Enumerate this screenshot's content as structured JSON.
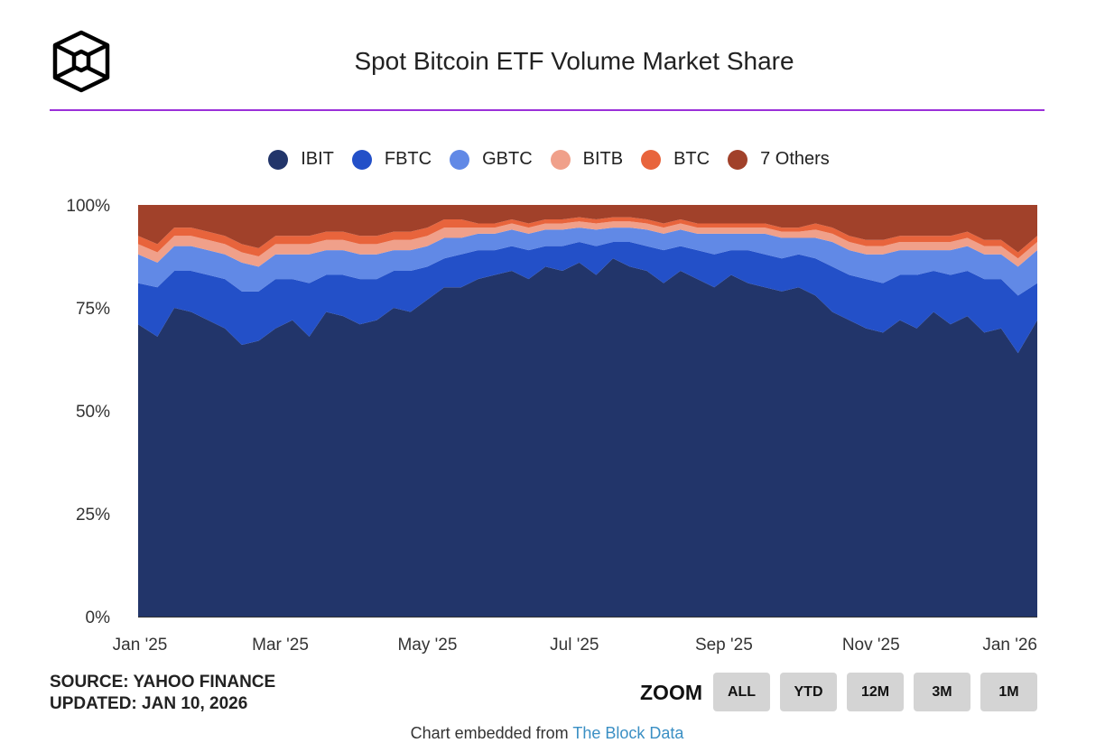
{
  "header": {
    "title": "Spot Bitcoin ETF Volume Market Share",
    "logo": "The Block"
  },
  "footer": {
    "source": "SOURCE: YAHOO FINANCE",
    "updated": "UPDATED: JAN 10, 2026",
    "zoom_label": "ZOOM",
    "zoom_buttons": [
      "ALL",
      "YTD",
      "12M",
      "3M",
      "1M"
    ],
    "embedded_text": "Chart embedded from ",
    "embedded_link": "The Block Data"
  },
  "chart_data": {
    "type": "area",
    "stacked": true,
    "title": "Spot Bitcoin ETF Volume Market Share",
    "xlabel": "",
    "ylabel": "",
    "ylim": [
      0,
      100
    ],
    "y_ticks": [
      "0%",
      "25%",
      "50%",
      "75%",
      "100%"
    ],
    "x_ticks": [
      {
        "date": "2025-01-01",
        "label": "Jan '25"
      },
      {
        "date": "2025-03-01",
        "label": "Mar '25"
      },
      {
        "date": "2025-05-01",
        "label": "May '25"
      },
      {
        "date": "2025-07-01",
        "label": "Jul '25"
      },
      {
        "date": "2025-09-01",
        "label": "Sep '25"
      },
      {
        "date": "2025-11-01",
        "label": "Nov '25"
      },
      {
        "date": "2026-01-01",
        "label": "Jan '26"
      }
    ],
    "legend_position": "top",
    "grid": false,
    "x": [
      "2025-01-02",
      "2025-01-09",
      "2025-01-16",
      "2025-01-23",
      "2025-01-30",
      "2025-02-06",
      "2025-02-13",
      "2025-02-20",
      "2025-02-27",
      "2025-03-06",
      "2025-03-13",
      "2025-03-20",
      "2025-03-27",
      "2025-04-03",
      "2025-04-10",
      "2025-04-17",
      "2025-04-24",
      "2025-05-01",
      "2025-05-08",
      "2025-05-15",
      "2025-05-22",
      "2025-05-29",
      "2025-06-05",
      "2025-06-12",
      "2025-06-19",
      "2025-06-26",
      "2025-07-03",
      "2025-07-10",
      "2025-07-17",
      "2025-07-24",
      "2025-07-31",
      "2025-08-07",
      "2025-08-14",
      "2025-08-21",
      "2025-08-28",
      "2025-09-04",
      "2025-09-11",
      "2025-09-18",
      "2025-09-25",
      "2025-10-02",
      "2025-10-09",
      "2025-10-16",
      "2025-10-23",
      "2025-10-30",
      "2025-11-06",
      "2025-11-13",
      "2025-11-20",
      "2025-11-27",
      "2025-12-04",
      "2025-12-11",
      "2025-12-18",
      "2025-12-25",
      "2026-01-01",
      "2026-01-08"
    ],
    "series": [
      {
        "name": "IBIT",
        "color": "#22356a",
        "values": [
          71,
          68,
          75,
          74,
          72,
          70,
          66,
          67,
          70,
          72,
          68,
          74,
          73,
          71,
          72,
          75,
          74,
          77,
          80,
          80,
          82,
          83,
          84,
          82,
          85,
          84,
          86,
          83,
          87,
          85,
          84,
          81,
          84,
          82,
          80,
          83,
          81,
          80,
          79,
          80,
          78,
          74,
          72,
          70,
          69,
          72,
          70,
          74,
          71,
          73,
          69,
          70,
          64,
          72
        ]
      },
      {
        "name": "FBTC",
        "color": "#2350c8",
        "values": [
          10,
          12,
          9,
          10,
          11,
          12,
          13,
          12,
          12,
          10,
          13,
          9,
          10,
          11,
          10,
          9,
          10,
          8,
          7,
          8,
          7,
          6,
          6,
          7,
          5,
          6,
          5,
          7,
          4,
          6,
          6,
          8,
          6,
          7,
          8,
          6,
          8,
          8,
          8,
          8,
          9,
          11,
          11,
          12,
          12,
          11,
          13,
          10,
          12,
          11,
          13,
          12,
          14,
          9
        ]
      },
      {
        "name": "GBTC",
        "color": "#6189e6",
        "values": [
          7,
          6,
          6,
          6,
          6,
          6,
          7,
          6,
          6,
          6,
          7,
          6,
          6,
          6,
          6,
          5,
          5,
          5,
          5,
          4,
          4,
          4,
          4,
          4,
          4,
          4,
          3.5,
          4,
          3.5,
          3.5,
          4,
          4,
          4,
          4,
          5,
          4,
          4,
          5,
          5,
          4,
          5,
          6,
          6,
          6,
          7,
          6,
          6,
          5,
          6,
          6,
          6,
          6,
          7,
          8
        ]
      },
      {
        "name": "BITB",
        "color": "#f0a08a",
        "values": [
          2.5,
          2.5,
          2.5,
          2.5,
          2.5,
          2.5,
          2.5,
          2.5,
          2.5,
          2.5,
          2.5,
          2.5,
          2.5,
          2.5,
          2.5,
          2.5,
          2.5,
          2.5,
          2.5,
          2.5,
          1.5,
          1.5,
          1.5,
          1.5,
          1.5,
          1.5,
          1.5,
          1.5,
          1.5,
          1.5,
          1.5,
          1.5,
          1.5,
          1.5,
          1.5,
          1.5,
          1.5,
          1.5,
          1.5,
          1.5,
          2,
          2,
          2,
          2,
          2,
          2,
          2,
          2,
          2,
          2,
          2,
          2,
          2,
          2
        ]
      },
      {
        "name": "BTC",
        "color": "#e8643c",
        "values": [
          2,
          2,
          2,
          2,
          2,
          2,
          2,
          2,
          2,
          2,
          2,
          2,
          2,
          2,
          2,
          2,
          2,
          2,
          2,
          2,
          1,
          1,
          1,
          1,
          1,
          1,
          1,
          1,
          1,
          1,
          1,
          1,
          1,
          1,
          1,
          1,
          1,
          1,
          1,
          1,
          1.5,
          1.5,
          1.5,
          1.5,
          1.5,
          1.5,
          1.5,
          1.5,
          1.5,
          1.5,
          1.5,
          1.5,
          1.5,
          1.5
        ]
      },
      {
        "name": "7 Others",
        "color": "#a1412a",
        "values": [
          7.5,
          9.5,
          5.5,
          5.5,
          6.5,
          7.5,
          9.5,
          10.5,
          7.5,
          7.5,
          7.5,
          6.5,
          6.5,
          7.5,
          7.5,
          6.5,
          6.5,
          5.5,
          3.5,
          3.5,
          4.5,
          4.5,
          3.5,
          4.5,
          3.5,
          3.5,
          3,
          3.5,
          3,
          3,
          3.5,
          4.5,
          3.5,
          4.5,
          4.5,
          4.5,
          4.5,
          4.5,
          5.5,
          5.5,
          4.5,
          5.5,
          7.5,
          8.5,
          8.5,
          7.5,
          7.5,
          7.5,
          7.5,
          6.5,
          8.5,
          8.5,
          11.5,
          7.5
        ]
      }
    ]
  }
}
